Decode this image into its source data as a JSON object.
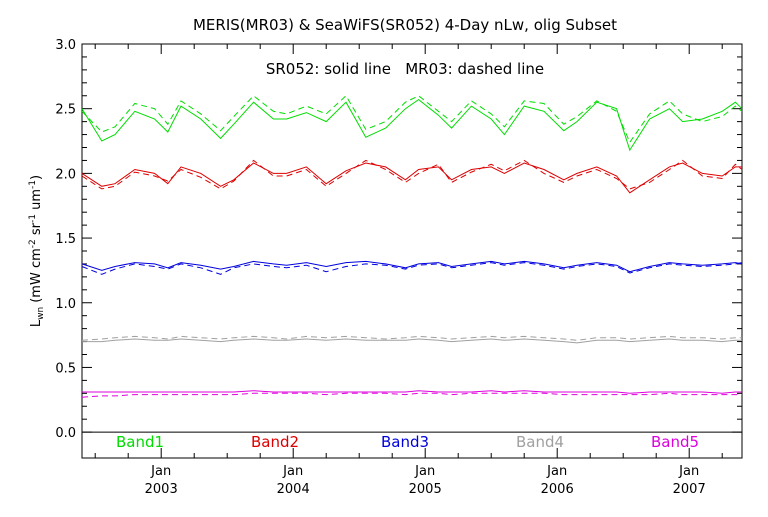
{
  "chart_data": {
    "type": "line",
    "title": "MERIS(MR03) & SeaWiFS(SR052) 4-Day nLw, olig Subset",
    "annotation": "SR052: solid line   MR03: dashed line",
    "ylabel_main": "L",
    "ylabel_sub": "wn",
    "ylabel_units": "(mW cm",
    "ylabel_exp1": "-2",
    "ylabel_mid": " sr",
    "ylabel_exp2": "-1",
    "ylabel_end": " um",
    "ylabel_exp3": "-1",
    "ylabel_close": ")",
    "ylim": [
      -0.2,
      3.0
    ],
    "xlim": [
      2002.4,
      2007.4
    ],
    "yticks": [
      "0.0",
      "0.5",
      "1.0",
      "1.5",
      "2.0",
      "2.5",
      "3.0"
    ],
    "x_month_ticks": [
      "Jan",
      "Jan",
      "Jan",
      "Jan",
      "Jan"
    ],
    "x_year_ticks": [
      "2003",
      "2004",
      "2005",
      "2006",
      "2007"
    ],
    "grid": false,
    "legend_placement": "bottom inside plot",
    "series": [
      {
        "name": "Band1",
        "color": "#00dd00",
        "x": [
          2002.4,
          2002.55,
          2002.65,
          2002.8,
          2002.95,
          2003.05,
          2003.15,
          2003.3,
          2003.45,
          2003.55,
          2003.7,
          2003.85,
          2003.95,
          2004.1,
          2004.25,
          2004.4,
          2004.55,
          2004.7,
          2004.85,
          2004.95,
          2005.1,
          2005.2,
          2005.35,
          2005.5,
          2005.6,
          2005.75,
          2005.9,
          2006.05,
          2006.15,
          2006.3,
          2006.45,
          2006.55,
          2006.7,
          2006.85,
          2006.95,
          2007.1,
          2007.25,
          2007.35,
          2007.4
        ],
        "solid": [
          2.5,
          2.25,
          2.3,
          2.48,
          2.42,
          2.32,
          2.52,
          2.42,
          2.27,
          2.38,
          2.55,
          2.42,
          2.42,
          2.47,
          2.4,
          2.55,
          2.28,
          2.35,
          2.5,
          2.57,
          2.45,
          2.35,
          2.52,
          2.42,
          2.3,
          2.52,
          2.48,
          2.33,
          2.4,
          2.55,
          2.5,
          2.18,
          2.42,
          2.5,
          2.4,
          2.42,
          2.48,
          2.55,
          2.5
        ],
        "dashed": [
          2.48,
          2.32,
          2.36,
          2.54,
          2.5,
          2.38,
          2.56,
          2.46,
          2.33,
          2.44,
          2.6,
          2.48,
          2.46,
          2.52,
          2.46,
          2.6,
          2.34,
          2.4,
          2.55,
          2.6,
          2.48,
          2.4,
          2.56,
          2.46,
          2.36,
          2.56,
          2.54,
          2.38,
          2.44,
          2.56,
          2.48,
          2.24,
          2.46,
          2.56,
          2.46,
          2.4,
          2.44,
          2.52,
          2.48
        ]
      },
      {
        "name": "Band2",
        "color": "#dd0000",
        "x": [
          2002.4,
          2002.55,
          2002.65,
          2002.8,
          2002.95,
          2003.05,
          2003.15,
          2003.3,
          2003.45,
          2003.55,
          2003.7,
          2003.85,
          2003.95,
          2004.1,
          2004.25,
          2004.4,
          2004.55,
          2004.7,
          2004.85,
          2004.95,
          2005.1,
          2005.2,
          2005.35,
          2005.5,
          2005.6,
          2005.75,
          2005.9,
          2006.05,
          2006.15,
          2006.3,
          2006.45,
          2006.55,
          2006.7,
          2006.85,
          2006.95,
          2007.1,
          2007.25,
          2007.35,
          2007.4
        ],
        "solid": [
          2.0,
          1.9,
          1.92,
          2.03,
          2.0,
          1.92,
          2.05,
          2.0,
          1.9,
          1.95,
          2.08,
          2.0,
          2.0,
          2.05,
          1.92,
          2.02,
          2.08,
          2.05,
          1.95,
          2.03,
          2.05,
          1.95,
          2.03,
          2.05,
          2.0,
          2.08,
          2.03,
          1.95,
          2.0,
          2.05,
          1.98,
          1.85,
          1.95,
          2.05,
          2.08,
          2.0,
          1.98,
          2.05,
          2.05
        ],
        "dashed": [
          1.98,
          1.88,
          1.9,
          2.01,
          1.98,
          1.94,
          2.03,
          1.97,
          1.88,
          1.94,
          2.1,
          1.98,
          1.98,
          2.03,
          1.9,
          2.0,
          2.1,
          2.03,
          1.93,
          2.0,
          2.07,
          1.93,
          2.01,
          2.07,
          2.02,
          2.1,
          2.0,
          1.93,
          1.98,
          2.03,
          1.96,
          1.88,
          1.93,
          2.03,
          2.1,
          1.98,
          1.96,
          2.07,
          2.03
        ]
      },
      {
        "name": "Band3",
        "color": "#0000dd",
        "x": [
          2002.4,
          2002.55,
          2002.65,
          2002.8,
          2002.95,
          2003.05,
          2003.15,
          2003.3,
          2003.45,
          2003.55,
          2003.7,
          2003.85,
          2003.95,
          2004.1,
          2004.25,
          2004.4,
          2004.55,
          2004.7,
          2004.85,
          2004.95,
          2005.1,
          2005.2,
          2005.35,
          2005.5,
          2005.6,
          2005.75,
          2005.9,
          2006.05,
          2006.15,
          2006.3,
          2006.45,
          2006.55,
          2006.7,
          2006.85,
          2006.95,
          2007.1,
          2007.25,
          2007.35,
          2007.4
        ],
        "solid": [
          1.3,
          1.25,
          1.28,
          1.31,
          1.3,
          1.27,
          1.31,
          1.29,
          1.26,
          1.28,
          1.32,
          1.3,
          1.29,
          1.31,
          1.28,
          1.31,
          1.32,
          1.3,
          1.27,
          1.3,
          1.31,
          1.28,
          1.3,
          1.32,
          1.3,
          1.32,
          1.3,
          1.27,
          1.29,
          1.31,
          1.29,
          1.24,
          1.28,
          1.31,
          1.3,
          1.29,
          1.3,
          1.31,
          1.3
        ],
        "dashed": [
          1.28,
          1.22,
          1.26,
          1.3,
          1.28,
          1.26,
          1.3,
          1.27,
          1.22,
          1.27,
          1.3,
          1.28,
          1.27,
          1.29,
          1.24,
          1.28,
          1.3,
          1.29,
          1.26,
          1.29,
          1.3,
          1.27,
          1.29,
          1.31,
          1.29,
          1.31,
          1.29,
          1.26,
          1.28,
          1.3,
          1.28,
          1.23,
          1.27,
          1.3,
          1.29,
          1.28,
          1.29,
          1.3,
          1.31
        ]
      },
      {
        "name": "Band4",
        "color": "#a0a0a0",
        "x": [
          2002.4,
          2002.55,
          2002.65,
          2002.8,
          2002.95,
          2003.05,
          2003.15,
          2003.3,
          2003.45,
          2003.55,
          2003.7,
          2003.85,
          2003.95,
          2004.1,
          2004.25,
          2004.4,
          2004.55,
          2004.7,
          2004.85,
          2004.95,
          2005.1,
          2005.2,
          2005.35,
          2005.5,
          2005.6,
          2005.75,
          2005.9,
          2006.05,
          2006.15,
          2006.3,
          2006.45,
          2006.55,
          2006.7,
          2006.85,
          2006.95,
          2007.1,
          2007.25,
          2007.35,
          2007.4
        ],
        "solid": [
          0.7,
          0.7,
          0.71,
          0.72,
          0.71,
          0.71,
          0.72,
          0.71,
          0.7,
          0.71,
          0.72,
          0.71,
          0.71,
          0.72,
          0.71,
          0.72,
          0.71,
          0.71,
          0.71,
          0.72,
          0.71,
          0.7,
          0.71,
          0.72,
          0.71,
          0.72,
          0.71,
          0.7,
          0.69,
          0.71,
          0.71,
          0.7,
          0.71,
          0.72,
          0.71,
          0.71,
          0.7,
          0.71,
          0.71
        ],
        "dashed": [
          0.71,
          0.72,
          0.73,
          0.74,
          0.73,
          0.72,
          0.74,
          0.73,
          0.72,
          0.73,
          0.74,
          0.73,
          0.72,
          0.74,
          0.73,
          0.74,
          0.73,
          0.72,
          0.73,
          0.74,
          0.73,
          0.72,
          0.73,
          0.74,
          0.73,
          0.74,
          0.73,
          0.72,
          0.71,
          0.73,
          0.73,
          0.72,
          0.73,
          0.74,
          0.73,
          0.73,
          0.72,
          0.73,
          0.73
        ]
      },
      {
        "name": "Band5",
        "color": "#dd00dd",
        "x": [
          2002.4,
          2002.55,
          2002.65,
          2002.8,
          2002.95,
          2003.05,
          2003.15,
          2003.3,
          2003.45,
          2003.55,
          2003.7,
          2003.85,
          2003.95,
          2004.1,
          2004.25,
          2004.4,
          2004.55,
          2004.7,
          2004.85,
          2004.95,
          2005.1,
          2005.2,
          2005.35,
          2005.5,
          2005.6,
          2005.75,
          2005.9,
          2006.05,
          2006.15,
          2006.3,
          2006.45,
          2006.55,
          2006.7,
          2006.85,
          2006.95,
          2007.1,
          2007.25,
          2007.35,
          2007.4
        ],
        "solid": [
          0.31,
          0.31,
          0.31,
          0.31,
          0.31,
          0.31,
          0.31,
          0.31,
          0.31,
          0.31,
          0.32,
          0.31,
          0.31,
          0.31,
          0.31,
          0.31,
          0.31,
          0.31,
          0.31,
          0.32,
          0.31,
          0.31,
          0.31,
          0.32,
          0.31,
          0.32,
          0.31,
          0.31,
          0.31,
          0.31,
          0.31,
          0.3,
          0.31,
          0.31,
          0.31,
          0.31,
          0.3,
          0.31,
          0.31
        ],
        "dashed": [
          0.27,
          0.28,
          0.28,
          0.29,
          0.29,
          0.29,
          0.29,
          0.29,
          0.29,
          0.29,
          0.3,
          0.3,
          0.3,
          0.3,
          0.29,
          0.3,
          0.3,
          0.3,
          0.29,
          0.3,
          0.3,
          0.29,
          0.3,
          0.3,
          0.3,
          0.3,
          0.3,
          0.29,
          0.29,
          0.29,
          0.29,
          0.29,
          0.29,
          0.3,
          0.29,
          0.29,
          0.29,
          0.29,
          0.29
        ]
      }
    ]
  }
}
